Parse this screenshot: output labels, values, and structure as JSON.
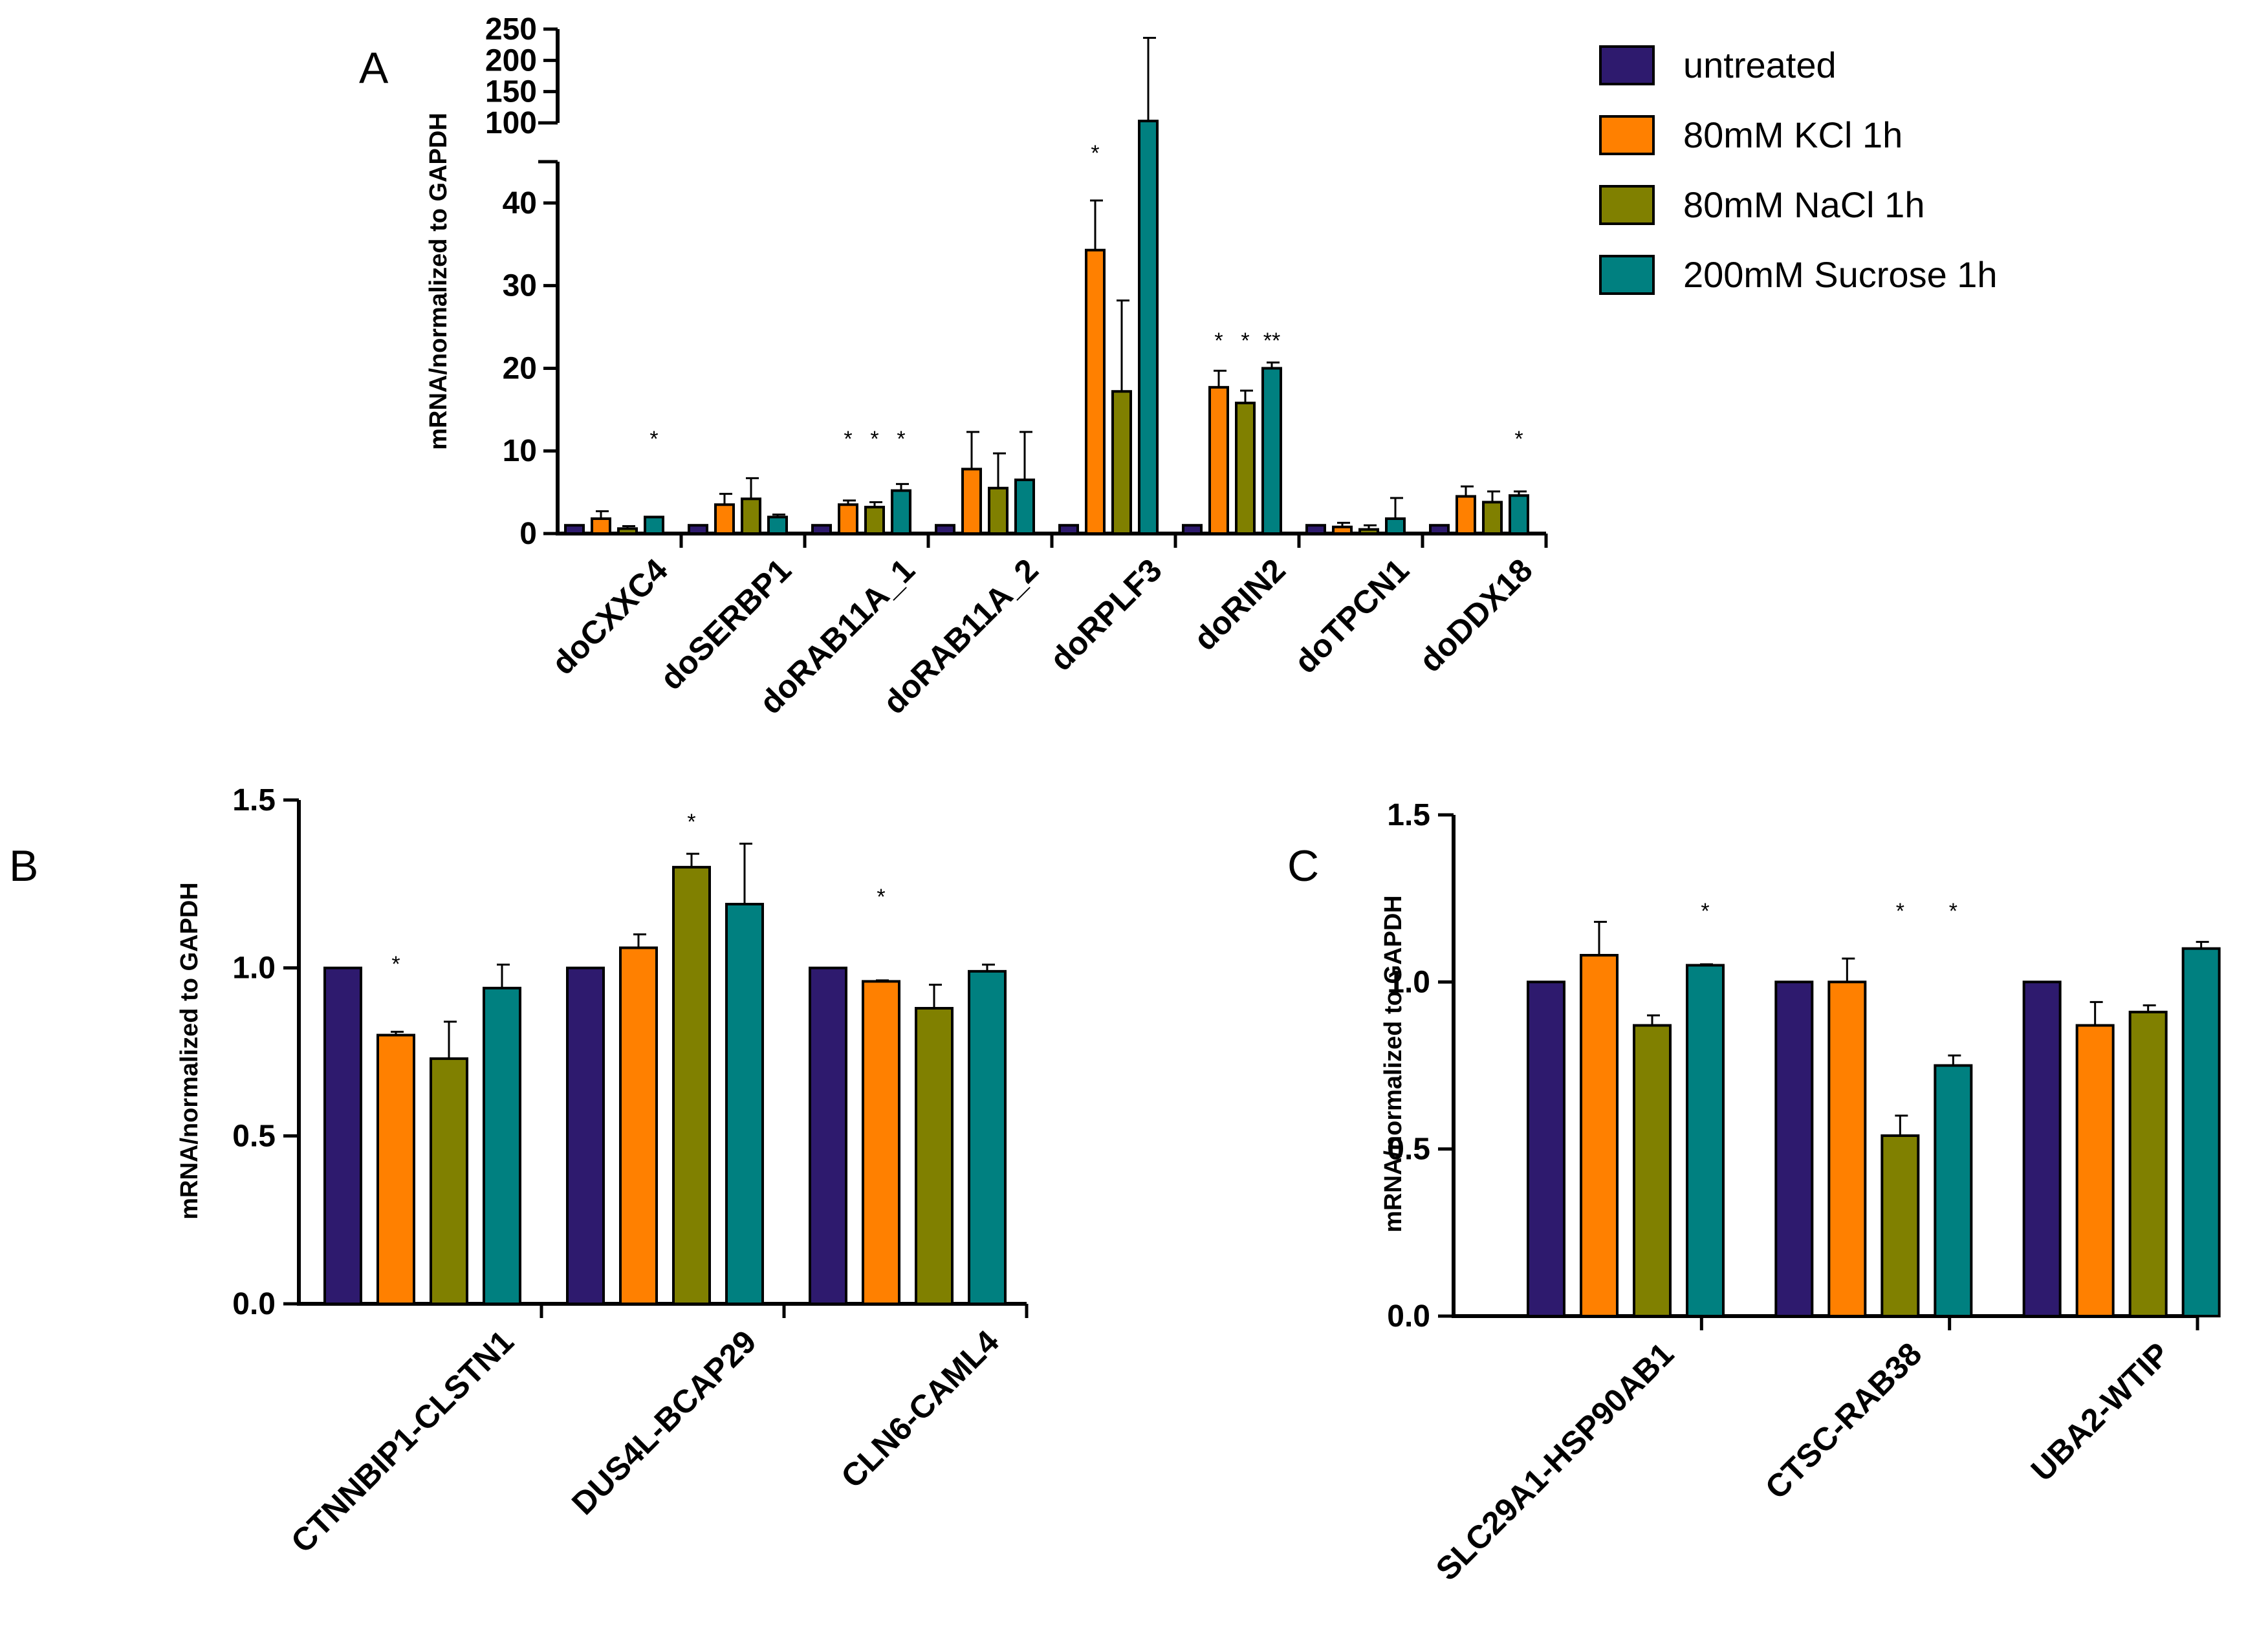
{
  "legend": [
    {
      "label": "untreated",
      "color": "#2e1a6e"
    },
    {
      "label": "80mM KCl 1h",
      "color": "#ff8000"
    },
    {
      "label": "80mM NaCl 1h",
      "color": "#808000"
    },
    {
      "label": "200mM Sucrose 1h",
      "color": "#008080"
    }
  ],
  "chart_data": [
    {
      "panel": "A",
      "type": "bar",
      "ylabel": "mRNA/normalized to GAPDH",
      "ylim": [
        0,
        250
      ],
      "y_axis_break": [
        45,
        100
      ],
      "lower_yticks": [
        "0",
        "10",
        "20",
        "30",
        "40"
      ],
      "upper_yticks": [
        "100",
        "150",
        "200",
        "250"
      ],
      "categories": [
        "doCXXC4",
        "doSERBP1",
        "doRAB11A_1",
        "doRAB11A_2",
        "doRPLF3",
        "doRIN2",
        "doTPCN1",
        "doDDX18"
      ],
      "series": [
        {
          "name": "untreated",
          "values": [
            1,
            1,
            1,
            1,
            1,
            1,
            1,
            1
          ],
          "errors": [
            0,
            0,
            0,
            0,
            0,
            0,
            0,
            0
          ]
        },
        {
          "name": "80mM KCl 1h",
          "values": [
            1.8,
            3.5,
            3.5,
            7.8,
            34.3,
            17.7,
            0.8,
            4.5
          ],
          "errors": [
            0.9,
            1.3,
            0.5,
            4.5,
            6.0,
            2.0,
            0.5,
            1.2
          ]
        },
        {
          "name": "80mM NaCl 1h",
          "values": [
            0.6,
            4.2,
            3.2,
            5.5,
            17.2,
            15.8,
            0.5,
            3.8
          ],
          "errors": [
            0.3,
            2.5,
            0.6,
            4.2,
            11.0,
            1.5,
            0.5,
            1.3
          ]
        },
        {
          "name": "200mM Sucrose 1h",
          "values": [
            2.0,
            2.0,
            5.2,
            6.5,
            103,
            20.0,
            1.8,
            4.6
          ],
          "errors": [
            0,
            0.3,
            0.8,
            5.8,
            133,
            0.7,
            2.5,
            0.5
          ]
        }
      ],
      "significance": [
        {
          "category": 0,
          "series": 3,
          "label": "*"
        },
        {
          "category": 2,
          "series": 1,
          "label": "*"
        },
        {
          "category": 2,
          "series": 2,
          "label": "*"
        },
        {
          "category": 2,
          "series": 3,
          "label": "*"
        },
        {
          "category": 4,
          "series": 1,
          "label": "*"
        },
        {
          "category": 5,
          "series": 1,
          "label": "*"
        },
        {
          "category": 5,
          "series": 2,
          "label": "*"
        },
        {
          "category": 5,
          "series": 3,
          "label": "**"
        },
        {
          "category": 7,
          "series": 3,
          "label": "*"
        }
      ]
    },
    {
      "panel": "B",
      "type": "bar",
      "ylabel": "mRNA/normalized to GAPDH",
      "ylim": [
        0,
        1.5
      ],
      "yticks": [
        "0.0",
        "0.5",
        "1.0",
        "1.5"
      ],
      "categories": [
        "CTNNBIP1-CLSTN1",
        "DUS4L-BCAP29",
        "CLN6-CAML4"
      ],
      "series": [
        {
          "name": "untreated",
          "values": [
            1.0,
            1.0,
            1.0
          ],
          "errors": [
            0,
            0,
            0
          ]
        },
        {
          "name": "80mM KCl 1h",
          "values": [
            0.8,
            1.06,
            0.96
          ],
          "errors": [
            0.01,
            0.04,
            0.003
          ]
        },
        {
          "name": "80mM NaCl 1h",
          "values": [
            0.73,
            1.3,
            0.88
          ],
          "errors": [
            0.11,
            0.04,
            0.07
          ]
        },
        {
          "name": "200mM Sucrose 1h",
          "values": [
            0.94,
            1.19,
            0.99
          ],
          "errors": [
            0.07,
            0.18,
            0.02
          ]
        }
      ],
      "significance": [
        {
          "category": 0,
          "series": 1,
          "label": "*"
        },
        {
          "category": 1,
          "series": 2,
          "label": "*"
        },
        {
          "category": 2,
          "series": 1,
          "label": "*"
        }
      ]
    },
    {
      "panel": "C",
      "type": "bar",
      "ylabel": "mRNA/normalized to GAPDH",
      "ylim": [
        0,
        1.5
      ],
      "yticks": [
        "0.0",
        "0.5",
        "1.0",
        "1.5"
      ],
      "categories": [
        "SLC29A1-HSP90AB1",
        "CTSC-RAB38",
        "UBA2-WTIP"
      ],
      "series": [
        {
          "name": "untreated",
          "values": [
            1.0,
            1.0,
            1.0
          ],
          "errors": [
            0,
            0,
            0
          ]
        },
        {
          "name": "80mM KCl 1h",
          "values": [
            1.08,
            1.0,
            0.87
          ],
          "errors": [
            0.1,
            0.07,
            0.07
          ]
        },
        {
          "name": "80mM NaCl 1h",
          "values": [
            0.87,
            0.54,
            0.91
          ],
          "errors": [
            0.03,
            0.06,
            0.02
          ]
        },
        {
          "name": "200mM Sucrose 1h",
          "values": [
            1.05,
            0.75,
            1.1
          ],
          "errors": [
            0.003,
            0.03,
            0.02
          ]
        }
      ],
      "significance": [
        {
          "category": 0,
          "series": 3,
          "label": "*"
        },
        {
          "category": 1,
          "series": 2,
          "label": "*"
        },
        {
          "category": 1,
          "series": 3,
          "label": "*"
        }
      ]
    }
  ]
}
